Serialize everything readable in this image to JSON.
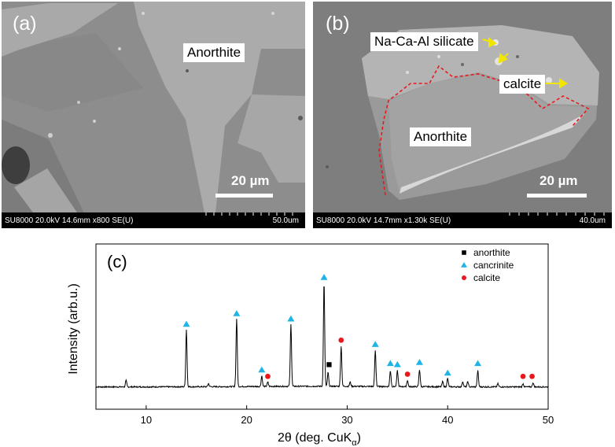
{
  "panel_a": {
    "label": "(a)",
    "mineral_label": "Anorthite",
    "scale_label": "20 µm",
    "info_left": "SU8000 20.0kV 14.6mm x800 SE(U)",
    "info_right": "50.0um"
  },
  "panel_b": {
    "label": "(b)",
    "label_silicate": "Na-Ca-Al silicate",
    "label_calcite": "calcite",
    "label_anorthite": "Anorthite",
    "scale_label": "20 µm",
    "info_left": "SU8000 20.0kV 14.7mm x1.30k SE(U)",
    "info_right": "40.0um"
  },
  "colors": {
    "anorthite_marker": "#000000",
    "cancrinite_marker": "#1fb4e6",
    "calcite_marker": "#e8191c",
    "phase_boundary": "#e8191c",
    "arrow": "#f2e600"
  },
  "chart_data": {
    "type": "line",
    "panel_label": "(c)",
    "title": "",
    "xlabel_main": "2θ (deg. CuK",
    "xlabel_sub": "α",
    "xlabel_close": ")",
    "ylabel": "Intensity (arb.u.)",
    "xlim": [
      5,
      50
    ],
    "xticks": [
      10,
      20,
      30,
      40,
      50
    ],
    "legend_position": "top-right",
    "legend": [
      {
        "name": "anorthite",
        "marker": "square"
      },
      {
        "name": "cancrinite",
        "marker": "triangle"
      },
      {
        "name": "calcite",
        "marker": "circle"
      }
    ],
    "peaks": [
      {
        "x": 8.0,
        "h": 0.06
      },
      {
        "x": 14.0,
        "h": 0.54
      },
      {
        "x": 16.2,
        "h": 0.03
      },
      {
        "x": 19.0,
        "h": 0.64
      },
      {
        "x": 21.5,
        "h": 0.1
      },
      {
        "x": 22.1,
        "h": 0.04
      },
      {
        "x": 24.4,
        "h": 0.59
      },
      {
        "x": 27.7,
        "h": 0.98
      },
      {
        "x": 28.1,
        "h": 0.13
      },
      {
        "x": 29.4,
        "h": 0.38
      },
      {
        "x": 30.3,
        "h": 0.04
      },
      {
        "x": 32.8,
        "h": 0.34
      },
      {
        "x": 34.3,
        "h": 0.15
      },
      {
        "x": 35.0,
        "h": 0.15
      },
      {
        "x": 36.0,
        "h": 0.06
      },
      {
        "x": 37.2,
        "h": 0.16
      },
      {
        "x": 39.5,
        "h": 0.05
      },
      {
        "x": 40.0,
        "h": 0.08
      },
      {
        "x": 41.5,
        "h": 0.05
      },
      {
        "x": 42.0,
        "h": 0.05
      },
      {
        "x": 43.0,
        "h": 0.15
      },
      {
        "x": 45.0,
        "h": 0.03
      },
      {
        "x": 47.5,
        "h": 0.03
      },
      {
        "x": 48.5,
        "h": 0.04
      }
    ],
    "markers": [
      {
        "phase": "cancrinite",
        "x": 14.0,
        "h": 0.57
      },
      {
        "phase": "cancrinite",
        "x": 19.0,
        "h": 0.67
      },
      {
        "phase": "cancrinite",
        "x": 21.5,
        "h": 0.14
      },
      {
        "phase": "calcite",
        "x": 22.1,
        "h": 0.08
      },
      {
        "phase": "cancrinite",
        "x": 24.4,
        "h": 0.62
      },
      {
        "phase": "cancrinite",
        "x": 27.7,
        "h": 1.01
      },
      {
        "phase": "anorthite",
        "x": 28.2,
        "h": 0.19
      },
      {
        "phase": "calcite",
        "x": 29.4,
        "h": 0.42
      },
      {
        "phase": "cancrinite",
        "x": 32.8,
        "h": 0.38
      },
      {
        "phase": "cancrinite",
        "x": 34.3,
        "h": 0.2
      },
      {
        "phase": "cancrinite",
        "x": 35.0,
        "h": 0.19
      },
      {
        "phase": "calcite",
        "x": 36.0,
        "h": 0.1
      },
      {
        "phase": "cancrinite",
        "x": 37.2,
        "h": 0.21
      },
      {
        "phase": "cancrinite",
        "x": 40.0,
        "h": 0.11
      },
      {
        "phase": "cancrinite",
        "x": 43.0,
        "h": 0.2
      },
      {
        "phase": "calcite",
        "x": 47.5,
        "h": 0.08
      },
      {
        "phase": "calcite",
        "x": 48.4,
        "h": 0.08
      }
    ]
  }
}
